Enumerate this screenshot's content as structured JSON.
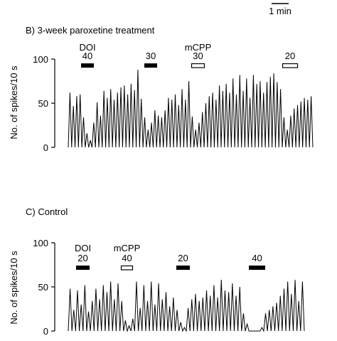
{
  "scale_bar": {
    "label": "1 min"
  },
  "chart_data": [
    {
      "type": "line",
      "title": "B) 3-week paroxetine treatment",
      "ylabel": "No. of spikes/10 s",
      "ylim": [
        0,
        100
      ],
      "yticks": [
        0,
        50,
        100
      ],
      "ytick_labels": [
        "0",
        "50",
        "100"
      ],
      "grid": false,
      "legend": "none",
      "series": [
        {
          "values": [
            0,
            62,
            0,
            47,
            0,
            58,
            0,
            60,
            0,
            34,
            0,
            16,
            0,
            8,
            0,
            28,
            0,
            51,
            0,
            36,
            0,
            64,
            0,
            56,
            0,
            66,
            0,
            54,
            0,
            62,
            0,
            68,
            0,
            70,
            0,
            60,
            0,
            72,
            0,
            65,
            0,
            88,
            0,
            55,
            0,
            34,
            0,
            20,
            0,
            28,
            0,
            42,
            0,
            36,
            0,
            34,
            0,
            42,
            0,
            56,
            0,
            54,
            0,
            60,
            0,
            48,
            0,
            66,
            0,
            54,
            0,
            75,
            0,
            35,
            0,
            20,
            0,
            28,
            0,
            40,
            0,
            50,
            0,
            58,
            0,
            62,
            0,
            54,
            0,
            70,
            0,
            64,
            0,
            72,
            0,
            62,
            0,
            78,
            0,
            60,
            0,
            82,
            0,
            64,
            0,
            78,
            0,
            56,
            0,
            82,
            0,
            72,
            0,
            75,
            0,
            62,
            0,
            74,
            0,
            80,
            0,
            84,
            0,
            74,
            0,
            66,
            0,
            34,
            0,
            20,
            0,
            36,
            0,
            44,
            0,
            48,
            0,
            52,
            0,
            56,
            0,
            54,
            0,
            58,
            0
          ]
        }
      ],
      "drugs": [
        {
          "name": "DOI",
          "dose": "40",
          "bar": "filled"
        },
        {
          "name": "",
          "dose": "30",
          "bar": "filled"
        },
        {
          "name": "mCPP",
          "dose": "30",
          "bar": "open"
        },
        {
          "name": "",
          "dose": "20",
          "bar": "open"
        }
      ]
    },
    {
      "type": "line",
      "title": "C) Control",
      "ylabel": "No. of spikes/10 s",
      "ylim": [
        0,
        100
      ],
      "yticks": [
        0,
        50,
        100
      ],
      "ytick_labels": [
        "0",
        "50",
        "100"
      ],
      "grid": false,
      "legend": "none",
      "series": [
        {
          "values": [
            0,
            48,
            0,
            24,
            0,
            46,
            0,
            30,
            0,
            52,
            0,
            22,
            0,
            34,
            0,
            48,
            0,
            36,
            0,
            52,
            0,
            44,
            0,
            56,
            0,
            36,
            0,
            54,
            0,
            34,
            0,
            12,
            0,
            6,
            0,
            14,
            0,
            56,
            0,
            26,
            0,
            52,
            0,
            34,
            0,
            56,
            0,
            30,
            0,
            54,
            0,
            36,
            0,
            44,
            0,
            28,
            0,
            38,
            0,
            24,
            0,
            10,
            0,
            4,
            0,
            26,
            0,
            36,
            0,
            42,
            0,
            34,
            0,
            38,
            0,
            46,
            0,
            40,
            0,
            52,
            0,
            38,
            0,
            58,
            0,
            46,
            0,
            44,
            0,
            54,
            0,
            40,
            0,
            50,
            0,
            20,
            0,
            8,
            0,
            0,
            0,
            0,
            0,
            0,
            0,
            4,
            0,
            20,
            0,
            24,
            0,
            28,
            0,
            32,
            0,
            40,
            0,
            48,
            0,
            56,
            0,
            42,
            0,
            58,
            0,
            34,
            0,
            56,
            0
          ]
        }
      ],
      "drugs": [
        {
          "name": "DOI",
          "dose": "20",
          "bar": "filled"
        },
        {
          "name": "mCPP",
          "dose": "40",
          "bar": "open"
        },
        {
          "name": "",
          "dose": "20",
          "bar": "filled"
        },
        {
          "name": "",
          "dose": "40",
          "bar": "filled"
        }
      ]
    }
  ]
}
